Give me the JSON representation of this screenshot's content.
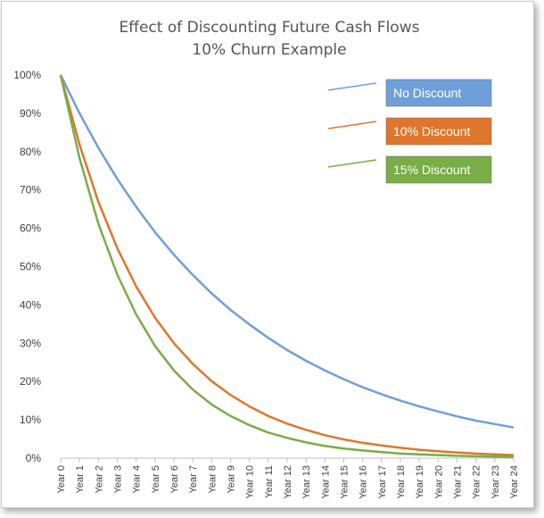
{
  "chart_data": {
    "type": "line",
    "title": "Effect of Discounting Future Cash Flows",
    "subtitle": "10% Churn Example",
    "xlabel": "",
    "ylabel": "",
    "ylim": [
      0,
      100
    ],
    "y_ticks": [
      "0%",
      "10%",
      "20%",
      "30%",
      "40%",
      "50%",
      "60%",
      "70%",
      "80%",
      "90%",
      "100%"
    ],
    "categories": [
      "Year 0",
      "Year 1",
      "Year 2",
      "Year 3",
      "Year 4",
      "Year 5",
      "Year 6",
      "Year 7",
      "Year 8",
      "Year 9",
      "Year 10",
      "Year 11",
      "Year 12",
      "Year 13",
      "Year 14",
      "Year 15",
      "Year 16",
      "Year 17",
      "Year 18",
      "Year 19",
      "Year 20",
      "Year 21",
      "Year 22",
      "Year 23",
      "Year 24"
    ],
    "series": [
      {
        "name": "No Discount",
        "color": "#6f9fd8",
        "values": [
          100,
          90,
          81,
          72.9,
          65.6,
          59,
          53.1,
          47.8,
          43,
          38.7,
          34.9,
          31.4,
          28.2,
          25.4,
          22.9,
          20.6,
          18.5,
          16.7,
          15,
          13.5,
          12.2,
          10.9,
          9.8,
          8.9,
          8
        ]
      },
      {
        "name": "10% Discount",
        "color": "#e0762c",
        "values": [
          100,
          81.8,
          66.9,
          54.8,
          44.8,
          36.7,
          30,
          24.6,
          20.1,
          16.5,
          13.5,
          11,
          9,
          7.4,
          6,
          4.9,
          4,
          3.3,
          2.7,
          2.2,
          1.8,
          1.5,
          1.2,
          1,
          0.8
        ]
      },
      {
        "name": "15% Discount",
        "color": "#79ad45",
        "values": [
          100,
          78.3,
          61.2,
          47.9,
          37.5,
          29.3,
          22.9,
          17.9,
          14,
          11,
          8.6,
          6.7,
          5.3,
          4.1,
          3.2,
          2.5,
          2,
          1.6,
          1.2,
          1,
          0.8,
          0.6,
          0.5,
          0.4,
          0.3
        ]
      }
    ],
    "legend": "top-right",
    "grid": false
  }
}
